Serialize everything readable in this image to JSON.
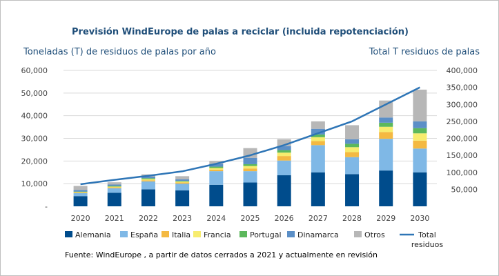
{
  "chart_data": {
    "type": "bar",
    "subtype": "stacked-bar-with-line",
    "title": "Previsión WindEurope de palas a reciclar (incluida repotenciación)",
    "ylabel_left": "Toneladas (T) de residuos de palas por año",
    "ylabel_right": "Total T residuos de palas",
    "source": "Fuente: WindEurope , a partir de datos cerrados a 2021 y actualmente en revisión",
    "categories": [
      "2020",
      "2021",
      "2022",
      "2023",
      "2024",
      "2025",
      "2026",
      "2027",
      "2028",
      "2029",
      "2030"
    ],
    "y_left": {
      "min": 0,
      "max": 60000,
      "ticks": [
        "-",
        "10,000",
        "20,000",
        "30,000",
        "40,000",
        "50,000",
        "60,000"
      ],
      "tick_values": [
        0,
        10000,
        20000,
        30000,
        40000,
        50000,
        60000
      ]
    },
    "y_right": {
      "min": 0,
      "max": 400000,
      "ticks": [
        "50,000",
        "100,000",
        "150,000",
        "200,000",
        "250,000",
        "300,000",
        "350,000",
        "400,000"
      ],
      "tick_values": [
        50000,
        100000,
        150000,
        200000,
        250000,
        300000,
        350000,
        400000
      ]
    },
    "series": [
      {
        "name": "Alemania",
        "color": "#004c8c",
        "values": [
          4500,
          6000,
          7500,
          7000,
          9500,
          10500,
          13700,
          15000,
          14200,
          15800,
          15000
        ]
      },
      {
        "name": "España",
        "color": "#7fb8e6",
        "values": [
          1300,
          2000,
          3500,
          3000,
          6000,
          5000,
          6500,
          12000,
          7500,
          14000,
          10500
        ]
      },
      {
        "name": "Italia",
        "color": "#f4b942",
        "values": [
          300,
          400,
          500,
          500,
          700,
          1200,
          2000,
          1800,
          2200,
          3000,
          3500
        ]
      },
      {
        "name": "Francia",
        "color": "#f7ec6e",
        "values": [
          200,
          300,
          500,
          400,
          700,
          1100,
          1500,
          1700,
          2200,
          2300,
          3200
        ]
      },
      {
        "name": "Portugal",
        "color": "#5cb85c",
        "values": [
          200,
          300,
          400,
          300,
          600,
          800,
          1100,
          1200,
          1500,
          1800,
          2300
        ]
      },
      {
        "name": "Dinamarca",
        "color": "#5b8fc7",
        "values": [
          700,
          600,
          700,
          700,
          1200,
          2800,
          1800,
          2500,
          2000,
          2300,
          3000
        ]
      },
      {
        "name": "Otros",
        "color": "#b7b7b7",
        "values": [
          1800,
          1000,
          1000,
          1400,
          1300,
          4300,
          3000,
          3300,
          6200,
          7500,
          14000
        ]
      }
    ],
    "line": {
      "name": "Total residuos",
      "legend_lines": [
        "Total",
        "residuos"
      ],
      "color": "#2e75b6",
      "axis": "right",
      "values": [
        65000,
        78000,
        90000,
        103000,
        125000,
        150000,
        180000,
        215000,
        250000,
        300000,
        350000
      ]
    },
    "grid": true,
    "legend_position": "bottom"
  }
}
